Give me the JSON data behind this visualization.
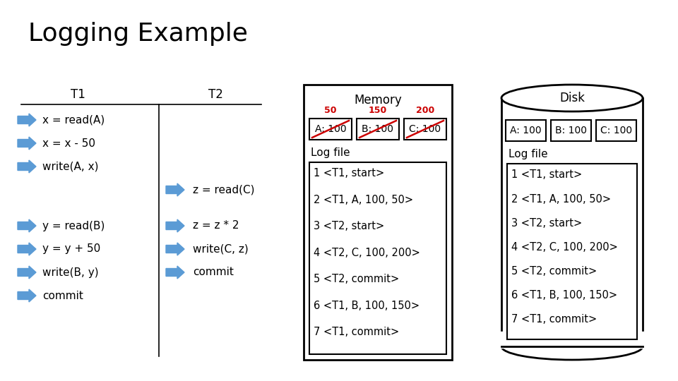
{
  "title": "Logging Example",
  "bg_color": "#ffffff",
  "title_fontsize": 26,
  "t1_ops": [
    "x = read(A)",
    "x = x - 50",
    "write(A, x)",
    "",
    "y = read(B)",
    "y = y + 50",
    "write(B, y)",
    "commit"
  ],
  "t2_ops": [
    "",
    "",
    "",
    "z = read(C)",
    "z = z * 2",
    "write(C, z)",
    "commit",
    ""
  ],
  "memory_label": "Memory",
  "memory_vals": [
    "A: 100",
    "B: 100",
    "C: 100"
  ],
  "memory_new_vals": [
    "50",
    "150",
    "200"
  ],
  "disk_label": "Disk",
  "disk_vals": [
    "A: 100",
    "B: 100",
    "C: 100"
  ],
  "log_entries": [
    "1 <T1, start>",
    "2 <T1, A, 100, 50>",
    "3 <T2, start>",
    "4 <T2, C, 100, 200>",
    "5 <T2, commit>",
    "6 <T1, B, 100, 150>",
    "7 <T1, commit>"
  ],
  "arrow_color": "#5b9bd5",
  "text_color": "#000000",
  "red_color": "#cc0000",
  "font_size": 11,
  "log_font_size": 10.5
}
